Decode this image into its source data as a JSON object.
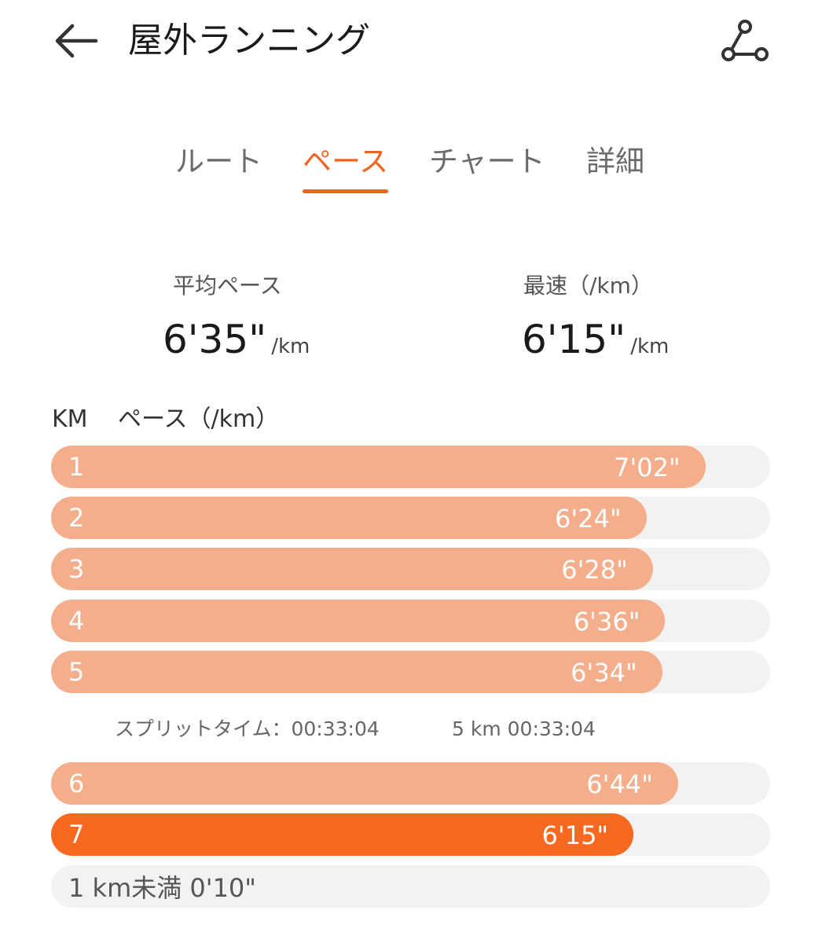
{
  "header": {
    "title": "屋外ランニング",
    "back_icon": "arrow-left-icon",
    "route_icon": "route-share-icon"
  },
  "tabs": [
    {
      "label": "ルート",
      "active": false
    },
    {
      "label": "ペース",
      "active": true
    },
    {
      "label": "チャート",
      "active": false
    },
    {
      "label": "詳細",
      "active": false
    }
  ],
  "summary": {
    "avg_pace": {
      "label": "平均ペース",
      "value": "6'35\"",
      "unit": "/km"
    },
    "fastest": {
      "label": "最速（/km）",
      "value": "6'15\"",
      "unit": "/km"
    }
  },
  "columns": {
    "km": "KM",
    "pace": "ペース（/km）"
  },
  "splits": [
    {
      "km": "1",
      "pace": "7'02\"",
      "fill": 0.91,
      "fastest": false
    },
    {
      "km": "2",
      "pace": "6'24\"",
      "fill": 0.828,
      "fastest": false
    },
    {
      "km": "3",
      "pace": "6'28\"",
      "fill": 0.837,
      "fastest": false
    },
    {
      "km": "4",
      "pace": "6'36\"",
      "fill": 0.854,
      "fastest": false
    },
    {
      "km": "5",
      "pace": "6'34\"",
      "fill": 0.85,
      "fastest": false
    },
    {
      "km": "6",
      "pace": "6'44\"",
      "fill": 0.872,
      "fastest": false
    },
    {
      "km": "7",
      "pace": "6'15\"",
      "fill": 0.81,
      "fastest": true
    }
  ],
  "split_time": {
    "label": "スプリットタイム：00:33:04",
    "detail": "5 km 00:33:04"
  },
  "remainder": {
    "label": "1 km未満 0'10\""
  },
  "colors": {
    "accent": "#f0641e",
    "bar": "#f5ae8c",
    "bar_fastest": "#f76820",
    "track": "#f2f2f2"
  }
}
